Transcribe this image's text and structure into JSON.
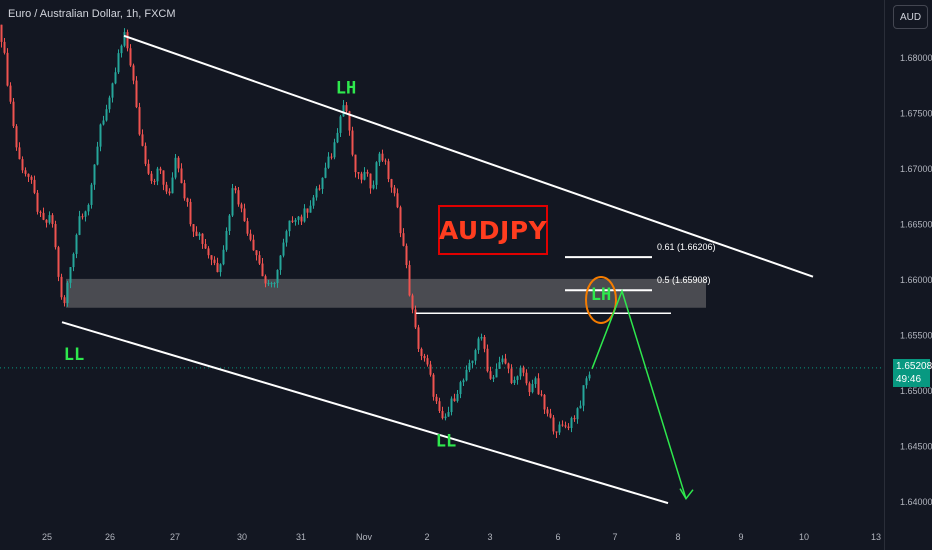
{
  "header": {
    "symbol_title": "Euro / Australian Dollar, 1h, FXCM"
  },
  "price_axis": {
    "currency_button": "AUD",
    "current_price": "1.65208",
    "countdown": "49:46"
  },
  "badge": {
    "label": "AUDJPY"
  },
  "colors": {
    "background": "#131722",
    "up_candle": "#26a69a",
    "down_candle": "#ef5350",
    "annotation_green": "#2ee84d",
    "badge_red": "#ff3d1f",
    "fib_circle": "#f57c00",
    "zone_gray": "#5d5e62",
    "price_tag": "#089981"
  },
  "chart_data": {
    "type": "candlestick",
    "title": "Euro / Australian Dollar, 1h, FXCM",
    "ylim": [
      1.6355,
      1.6883
    ],
    "y_ticks": [
      "1.68000",
      "1.67500",
      "1.67000",
      "1.66500",
      "1.66000",
      "1.65500",
      "1.65000",
      "1.64500",
      "1.64000"
    ],
    "x_ticks": [
      "25",
      "26",
      "27",
      "30",
      "31",
      "Nov",
      "2",
      "3",
      "6",
      "7",
      "8",
      "9",
      "10",
      "13"
    ],
    "grid": false,
    "price_path": [
      [
        0,
        1.683
      ],
      [
        6,
        1.679
      ],
      [
        18,
        1.671
      ],
      [
        30,
        1.669
      ],
      [
        42,
        1.665
      ],
      [
        52,
        1.6655
      ],
      [
        63,
        1.657
      ],
      [
        70,
        1.661
      ],
      [
        80,
        1.666
      ],
      [
        90,
        1.667
      ],
      [
        100,
        1.674
      ],
      [
        110,
        1.676
      ],
      [
        118,
        1.68
      ],
      [
        125,
        1.682
      ],
      [
        132,
        1.679
      ],
      [
        138,
        1.674
      ],
      [
        145,
        1.671
      ],
      [
        152,
        1.669
      ],
      [
        160,
        1.67
      ],
      [
        168,
        1.667
      ],
      [
        176,
        1.6715
      ],
      [
        184,
        1.668
      ],
      [
        192,
        1.665
      ],
      [
        200,
        1.664
      ],
      [
        208,
        1.6625
      ],
      [
        218,
        1.661
      ],
      [
        226,
        1.664
      ],
      [
        234,
        1.669
      ],
      [
        242,
        1.666
      ],
      [
        250,
        1.664
      ],
      [
        258,
        1.662
      ],
      [
        264,
        1.66
      ],
      [
        270,
        1.659
      ],
      [
        278,
        1.661
      ],
      [
        286,
        1.664
      ],
      [
        294,
        1.666
      ],
      [
        302,
        1.6655
      ],
      [
        310,
        1.667
      ],
      [
        318,
        1.668
      ],
      [
        326,
        1.67
      ],
      [
        334,
        1.672
      ],
      [
        342,
        1.676
      ],
      [
        348,
        1.675
      ],
      [
        352,
        1.671
      ],
      [
        358,
        1.669
      ],
      [
        364,
        1.6695
      ],
      [
        372,
        1.6685
      ],
      [
        380,
        1.6718
      ],
      [
        388,
        1.6695
      ],
      [
        396,
        1.667
      ],
      [
        402,
        1.664
      ],
      [
        408,
        1.66
      ],
      [
        414,
        1.656
      ],
      [
        420,
        1.6535
      ],
      [
        428,
        1.652
      ],
      [
        436,
        1.649
      ],
      [
        442,
        1.647
      ],
      [
        448,
        1.648
      ],
      [
        456,
        1.65
      ],
      [
        464,
        1.651
      ],
      [
        472,
        1.6525
      ],
      [
        478,
        1.655
      ],
      [
        484,
        1.654
      ],
      [
        490,
        1.651
      ],
      [
        496,
        1.652
      ],
      [
        504,
        1.6528
      ],
      [
        510,
        1.6515
      ],
      [
        516,
        1.6505
      ],
      [
        522,
        1.6522
      ],
      [
        528,
        1.65
      ],
      [
        534,
        1.651
      ],
      [
        540,
        1.6495
      ],
      [
        546,
        1.648
      ],
      [
        552,
        1.647
      ],
      [
        560,
        1.6465
      ],
      [
        568,
        1.647
      ],
      [
        576,
        1.648
      ],
      [
        582,
        1.6495
      ],
      [
        588,
        1.6515
      ],
      [
        592,
        1.652
      ]
    ],
    "zone": {
      "x_start": 66,
      "x_end": 706,
      "top": 1.6601,
      "bottom": 1.6575
    },
    "fib_levels": [
      {
        "label": "0.61 (1.66206)",
        "price": 1.66206,
        "x_start": 565,
        "x_end": 652
      },
      {
        "label": "0.5 (1.65908)",
        "price": 1.65908,
        "x_start": 565,
        "x_end": 652
      }
    ],
    "resistance_line": {
      "price": 1.657,
      "x_start": 416,
      "x_end": 671
    },
    "channel_lines": [
      {
        "name": "upper",
        "x1": 124,
        "y1": 1.682,
        "x2": 813,
        "y2": 1.6603
      },
      {
        "name": "lower",
        "x1": 62,
        "y1": 1.6562,
        "x2": 668,
        "y2": 1.6399
      }
    ],
    "projection": [
      [
        592,
        1.652
      ],
      [
        622,
        1.659
      ],
      [
        686,
        1.6403
      ]
    ],
    "annotations": [
      {
        "label": "LH",
        "x": 346,
        "price": 1.6768
      },
      {
        "label": "LL",
        "x": 74,
        "price": 1.6528
      },
      {
        "label": "LL",
        "x": 446,
        "price": 1.645
      },
      {
        "label": "LH",
        "x": 601,
        "price": 1.6582
      }
    ],
    "current_price": 1.65208
  }
}
